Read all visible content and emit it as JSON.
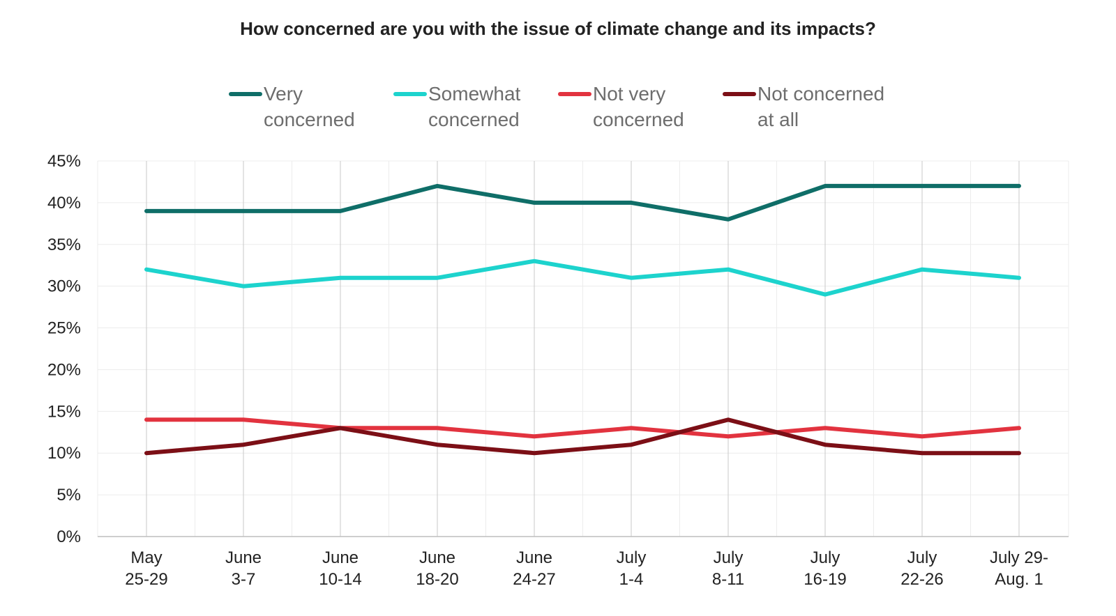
{
  "chart_data": {
    "type": "line",
    "title": "How concerned are you with the issue of climate change and its impacts?",
    "categories": [
      [
        "May",
        "25-29"
      ],
      [
        "June",
        "3-7"
      ],
      [
        "June",
        "10-14"
      ],
      [
        "June",
        "18-20"
      ],
      [
        "June",
        "24-27"
      ],
      [
        "July",
        "1-4"
      ],
      [
        "July",
        "8-11"
      ],
      [
        "July",
        "16-19"
      ],
      [
        "July",
        "22-26"
      ],
      [
        "July 29-",
        "Aug. 1"
      ]
    ],
    "series": [
      {
        "name": "Very concerned",
        "color": "#0f6e68",
        "values": [
          39,
          39,
          39,
          42,
          40,
          40,
          38,
          42,
          42,
          42
        ]
      },
      {
        "name": "Somewhat concerned",
        "color": "#1dd3cd",
        "values": [
          32,
          30,
          31,
          31,
          33,
          31,
          32,
          29,
          32,
          31
        ]
      },
      {
        "name": "Not very concerned",
        "color": "#e2333f",
        "values": [
          14,
          14,
          13,
          13,
          12,
          13,
          12,
          13,
          12,
          13
        ]
      },
      {
        "name": "Not concerned at all",
        "color": "#7c0f16",
        "values": [
          10,
          11,
          13,
          11,
          10,
          11,
          14,
          11,
          10,
          10
        ]
      }
    ],
    "ylim": [
      0,
      45
    ],
    "yticks": [
      0,
      5,
      10,
      15,
      20,
      25,
      30,
      35,
      40,
      45
    ],
    "ytick_labels": [
      "0%",
      "5%",
      "10%",
      "15%",
      "20%",
      "25%",
      "30%",
      "35%",
      "40%",
      "45%"
    ],
    "grid": true,
    "legend": "top"
  }
}
